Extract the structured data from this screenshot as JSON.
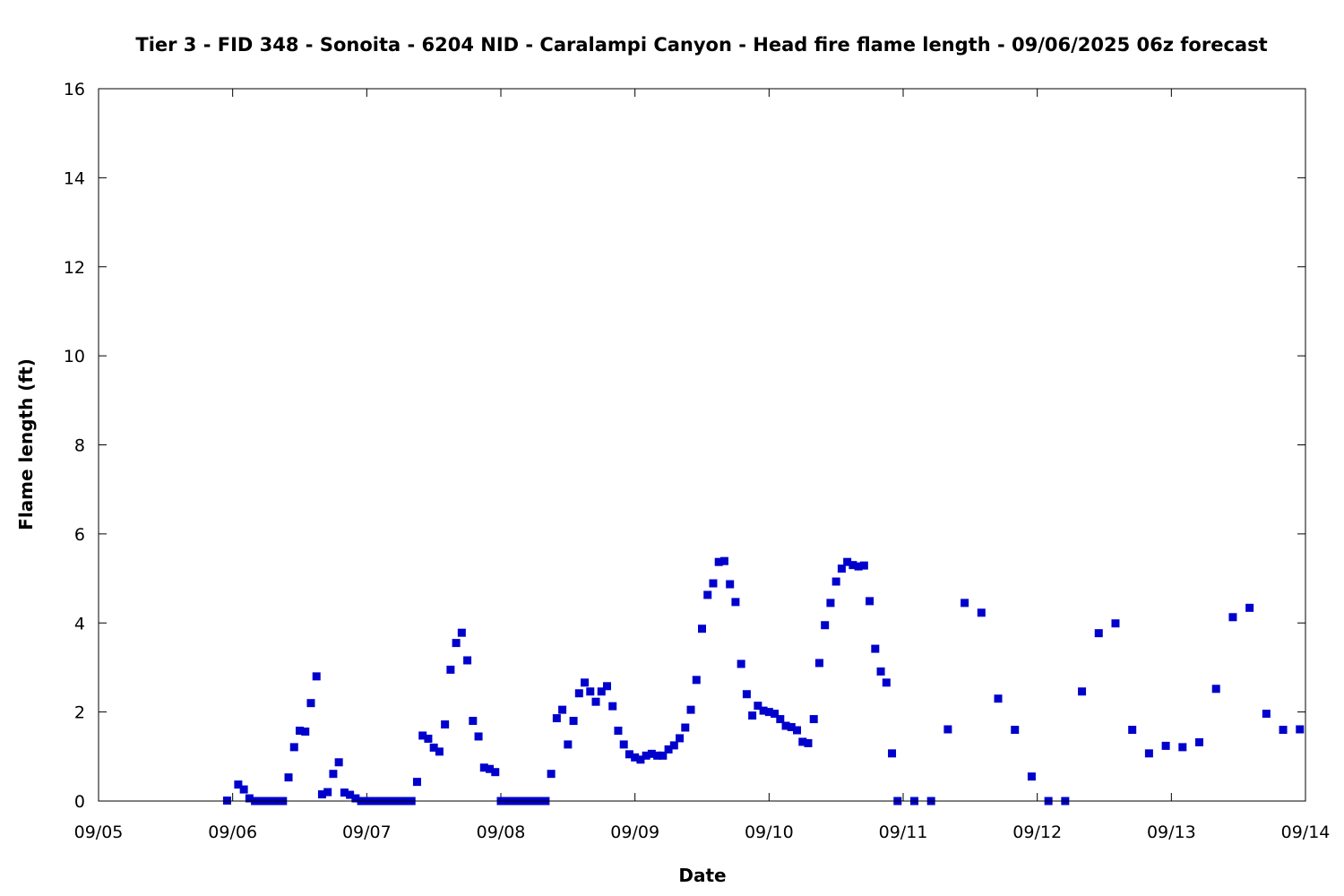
{
  "chart_data": {
    "type": "scatter",
    "title": "Tier 3 - FID 348 - Sonoita - 6204 NID - Caralampi Canyon - Head fire flame length - 09/06/2025 06z forecast",
    "xlabel": "Date",
    "ylabel": "Flame length (ft)",
    "x_tick_labels": [
      "09/05",
      "09/06",
      "09/07",
      "09/08",
      "09/09",
      "09/10",
      "09/11",
      "09/12",
      "09/13",
      "09/14"
    ],
    "y_tick_labels": [
      "0",
      "2",
      "4",
      "6",
      "8",
      "10",
      "12",
      "14",
      "16"
    ],
    "xlim": [
      "2025-09-05 00:00",
      "2025-09-14 00:00"
    ],
    "ylim": [
      0,
      16
    ],
    "grid": false,
    "marker_color": "#0000cc",
    "series": [
      {
        "points": [
          [
            "2025-09-05 23:00",
            0.01
          ],
          [
            "2025-09-06 01:00",
            0.37
          ],
          [
            "2025-09-06 02:00",
            0.26
          ],
          [
            "2025-09-06 03:00",
            0.06
          ],
          [
            "2025-09-06 04:00",
            0
          ],
          [
            "2025-09-06 05:00",
            0
          ],
          [
            "2025-09-06 06:00",
            0
          ],
          [
            "2025-09-06 07:00",
            0
          ],
          [
            "2025-09-06 08:00",
            0
          ],
          [
            "2025-09-06 09:00",
            0
          ],
          [
            "2025-09-06 10:00",
            0.53
          ],
          [
            "2025-09-06 11:00",
            1.21
          ],
          [
            "2025-09-06 12:00",
            1.58
          ],
          [
            "2025-09-06 13:00",
            1.56
          ],
          [
            "2025-09-06 14:00",
            2.2
          ],
          [
            "2025-09-06 15:00",
            2.8
          ],
          [
            "2025-09-06 16:00",
            0.15
          ],
          [
            "2025-09-06 17:00",
            0.2
          ],
          [
            "2025-09-06 18:00",
            0.61
          ],
          [
            "2025-09-06 19:00",
            0.87
          ],
          [
            "2025-09-06 20:00",
            0.19
          ],
          [
            "2025-09-06 21:00",
            0.14
          ],
          [
            "2025-09-06 22:00",
            0.06
          ],
          [
            "2025-09-06 23:00",
            0
          ],
          [
            "2025-09-07 00:00",
            0
          ],
          [
            "2025-09-07 01:00",
            0
          ],
          [
            "2025-09-07 02:00",
            0
          ],
          [
            "2025-09-07 03:00",
            0
          ],
          [
            "2025-09-07 04:00",
            0
          ],
          [
            "2025-09-07 05:00",
            0
          ],
          [
            "2025-09-07 06:00",
            0
          ],
          [
            "2025-09-07 07:00",
            0
          ],
          [
            "2025-09-07 08:00",
            0
          ],
          [
            "2025-09-07 09:00",
            0.43
          ],
          [
            "2025-09-07 10:00",
            1.47
          ],
          [
            "2025-09-07 11:00",
            1.4
          ],
          [
            "2025-09-07 12:00",
            1.2
          ],
          [
            "2025-09-07 13:00",
            1.11
          ],
          [
            "2025-09-07 14:00",
            1.72
          ],
          [
            "2025-09-07 15:00",
            2.95
          ],
          [
            "2025-09-07 16:00",
            3.55
          ],
          [
            "2025-09-07 17:00",
            3.78
          ],
          [
            "2025-09-07 18:00",
            3.16
          ],
          [
            "2025-09-07 19:00",
            1.8
          ],
          [
            "2025-09-07 20:00",
            1.45
          ],
          [
            "2025-09-07 21:00",
            0.75
          ],
          [
            "2025-09-07 22:00",
            0.72
          ],
          [
            "2025-09-07 23:00",
            0.65
          ],
          [
            "2025-09-08 00:00",
            0
          ],
          [
            "2025-09-08 01:00",
            0
          ],
          [
            "2025-09-08 02:00",
            0
          ],
          [
            "2025-09-08 03:00",
            0
          ],
          [
            "2025-09-08 04:00",
            0
          ],
          [
            "2025-09-08 05:00",
            0
          ],
          [
            "2025-09-08 06:00",
            0
          ],
          [
            "2025-09-08 07:00",
            0
          ],
          [
            "2025-09-08 08:00",
            0
          ],
          [
            "2025-09-08 09:00",
            0.61
          ],
          [
            "2025-09-08 10:00",
            1.86
          ],
          [
            "2025-09-08 11:00",
            2.05
          ],
          [
            "2025-09-08 12:00",
            1.27
          ],
          [
            "2025-09-08 13:00",
            1.8
          ],
          [
            "2025-09-08 14:00",
            2.42
          ],
          [
            "2025-09-08 15:00",
            2.66
          ],
          [
            "2025-09-08 16:00",
            2.46
          ],
          [
            "2025-09-08 17:00",
            2.23
          ],
          [
            "2025-09-08 18:00",
            2.46
          ],
          [
            "2025-09-08 19:00",
            2.58
          ],
          [
            "2025-09-08 20:00",
            2.13
          ],
          [
            "2025-09-08 21:00",
            1.58
          ],
          [
            "2025-09-08 22:00",
            1.27
          ],
          [
            "2025-09-08 23:00",
            1.05
          ],
          [
            "2025-09-09 00:00",
            0.98
          ],
          [
            "2025-09-09 01:00",
            0.93
          ],
          [
            "2025-09-09 02:00",
            1.02
          ],
          [
            "2025-09-09 03:00",
            1.06
          ],
          [
            "2025-09-09 04:00",
            1.02
          ],
          [
            "2025-09-09 05:00",
            1.02
          ],
          [
            "2025-09-09 06:00",
            1.16
          ],
          [
            "2025-09-09 07:00",
            1.25
          ],
          [
            "2025-09-09 08:00",
            1.41
          ],
          [
            "2025-09-09 09:00",
            1.65
          ],
          [
            "2025-09-09 10:00",
            2.05
          ],
          [
            "2025-09-09 11:00",
            2.72
          ],
          [
            "2025-09-09 12:00",
            3.87
          ],
          [
            "2025-09-09 13:00",
            4.63
          ],
          [
            "2025-09-09 14:00",
            4.89
          ],
          [
            "2025-09-09 15:00",
            5.37
          ],
          [
            "2025-09-09 16:00",
            5.39
          ],
          [
            "2025-09-09 17:00",
            4.87
          ],
          [
            "2025-09-09 18:00",
            4.47
          ],
          [
            "2025-09-09 19:00",
            3.08
          ],
          [
            "2025-09-09 20:00",
            2.4
          ],
          [
            "2025-09-09 21:00",
            1.92
          ],
          [
            "2025-09-09 22:00",
            2.14
          ],
          [
            "2025-09-09 23:00",
            2.03
          ],
          [
            "2025-09-10 00:00",
            2.0
          ],
          [
            "2025-09-10 01:00",
            1.96
          ],
          [
            "2025-09-10 02:00",
            1.84
          ],
          [
            "2025-09-10 03:00",
            1.69
          ],
          [
            "2025-09-10 04:00",
            1.66
          ],
          [
            "2025-09-10 05:00",
            1.59
          ],
          [
            "2025-09-10 06:00",
            1.33
          ],
          [
            "2025-09-10 07:00",
            1.3
          ],
          [
            "2025-09-10 08:00",
            1.84
          ],
          [
            "2025-09-10 09:00",
            3.1
          ],
          [
            "2025-09-10 10:00",
            3.95
          ],
          [
            "2025-09-10 11:00",
            4.45
          ],
          [
            "2025-09-10 12:00",
            4.93
          ],
          [
            "2025-09-10 13:00",
            5.22
          ],
          [
            "2025-09-10 14:00",
            5.37
          ],
          [
            "2025-09-10 15:00",
            5.3
          ],
          [
            "2025-09-10 16:00",
            5.27
          ],
          [
            "2025-09-10 17:00",
            5.29
          ],
          [
            "2025-09-10 18:00",
            4.49
          ],
          [
            "2025-09-10 19:00",
            3.42
          ],
          [
            "2025-09-10 20:00",
            2.91
          ],
          [
            "2025-09-10 21:00",
            2.66
          ],
          [
            "2025-09-10 22:00",
            1.07
          ],
          [
            "2025-09-10 23:00",
            0
          ],
          [
            "2025-09-11 02:00",
            0
          ],
          [
            "2025-09-11 05:00",
            0
          ],
          [
            "2025-09-11 08:00",
            1.61
          ],
          [
            "2025-09-11 11:00",
            4.45
          ],
          [
            "2025-09-11 14:00",
            4.23
          ],
          [
            "2025-09-11 17:00",
            2.3
          ],
          [
            "2025-09-11 20:00",
            1.6
          ],
          [
            "2025-09-11 23:00",
            0.55
          ],
          [
            "2025-09-12 02:00",
            0
          ],
          [
            "2025-09-12 05:00",
            0
          ],
          [
            "2025-09-12 08:00",
            2.46
          ],
          [
            "2025-09-12 11:00",
            3.77
          ],
          [
            "2025-09-12 14:00",
            3.99
          ],
          [
            "2025-09-12 17:00",
            1.6
          ],
          [
            "2025-09-12 20:00",
            1.07
          ],
          [
            "2025-09-12 23:00",
            1.24
          ],
          [
            "2025-09-13 02:00",
            1.21
          ],
          [
            "2025-09-13 05:00",
            1.32
          ],
          [
            "2025-09-13 08:00",
            2.52
          ],
          [
            "2025-09-13 11:00",
            4.13
          ],
          [
            "2025-09-13 14:00",
            4.34
          ],
          [
            "2025-09-13 17:00",
            1.96
          ],
          [
            "2025-09-13 20:00",
            1.6
          ],
          [
            "2025-09-13 23:00",
            1.61
          ]
        ]
      }
    ]
  }
}
